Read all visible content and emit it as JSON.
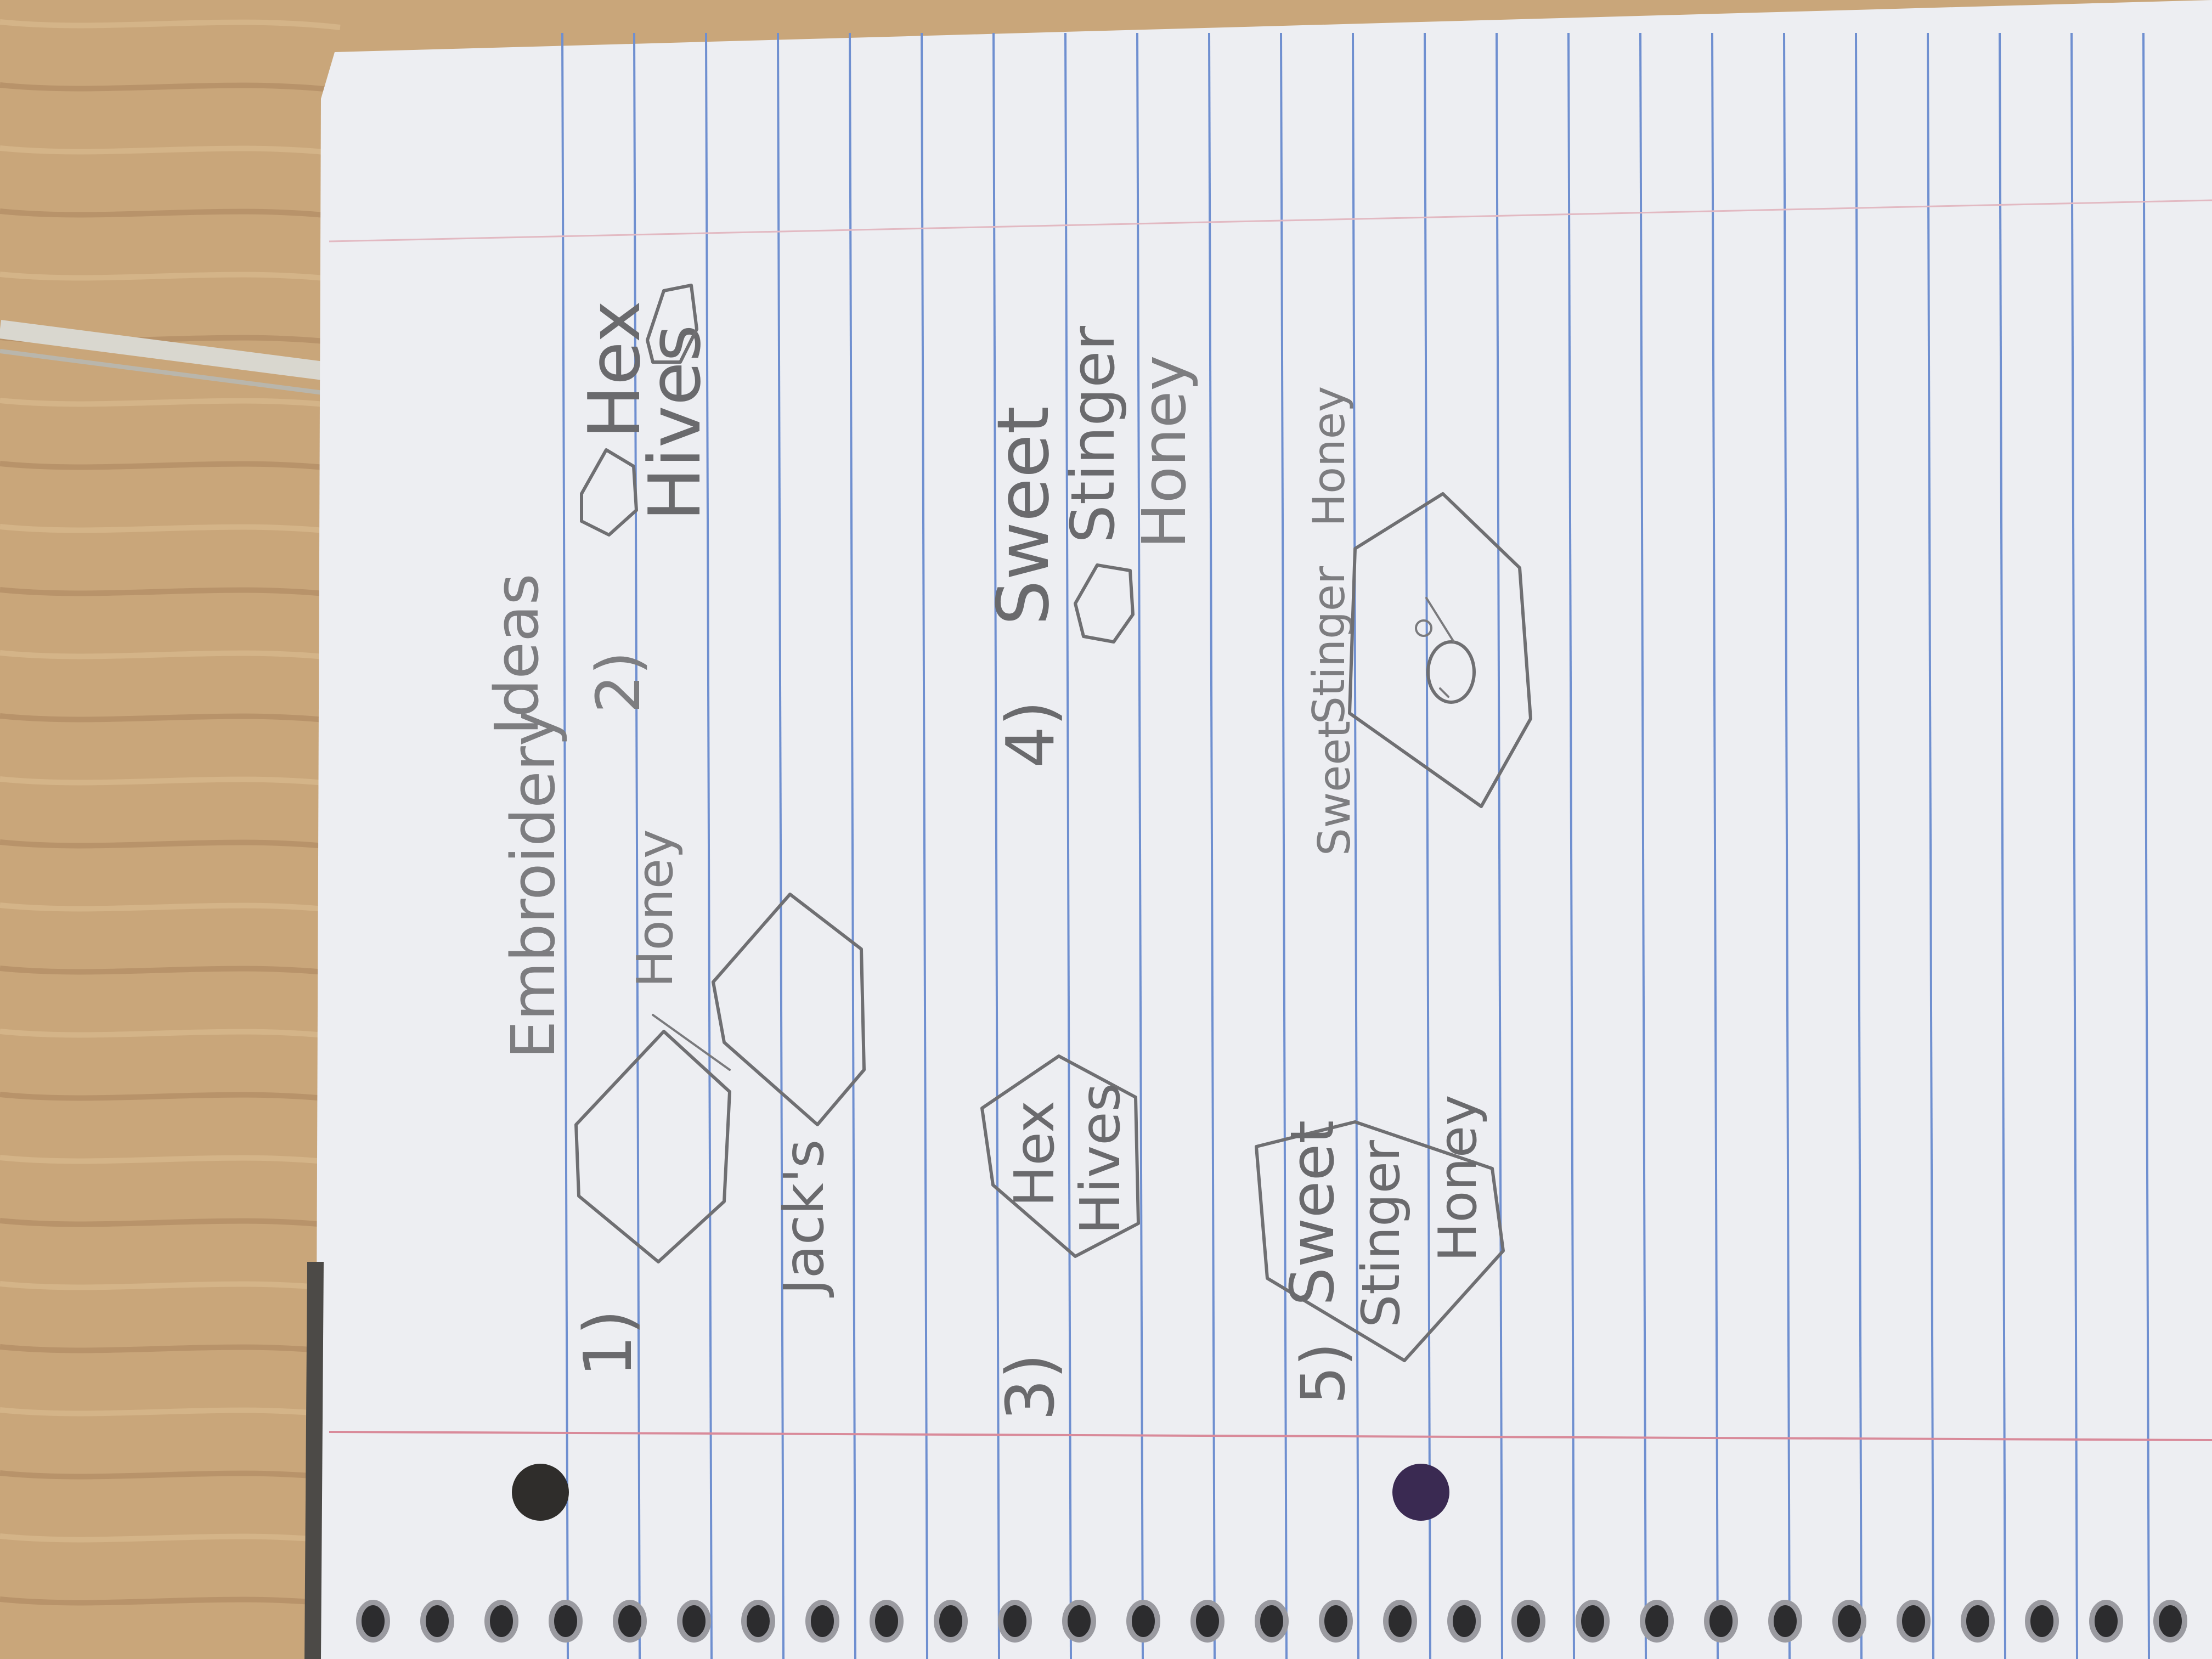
{
  "notebook": {
    "title_words": [
      "Embroidery",
      "Ideas"
    ],
    "ideas": [
      {
        "number": "1)",
        "texts": [
          "Honey",
          "Jack's"
        ]
      },
      {
        "number": "2)",
        "texts": [
          "Hex",
          "Hives"
        ]
      },
      {
        "number": "3)",
        "texts": [
          "Hex",
          "Hives"
        ]
      },
      {
        "number": "4)",
        "texts": [
          "Sweet",
          "Stinger",
          "Honey"
        ]
      },
      {
        "number": "5)",
        "texts": [
          "Sweet",
          "Stinger",
          "Honey"
        ]
      },
      {
        "number": "",
        "texts": [
          "Sweet",
          "Stinger",
          "Honey"
        ]
      }
    ]
  },
  "colors": {
    "desk": "#c9a67a",
    "paper": "#edeef2",
    "rule_line": "#6f8fd0",
    "margin_line": "#d98a9a",
    "pencil": "#6f6f72"
  }
}
